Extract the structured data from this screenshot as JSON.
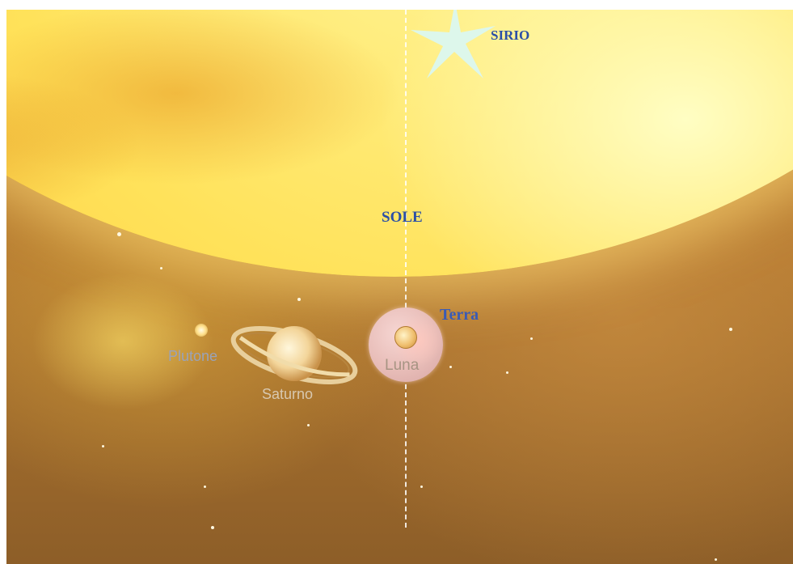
{
  "labels": {
    "sirio": "SIRIO",
    "sole": "SOLE",
    "terra": "Terra",
    "luna": "Luna",
    "saturno": "Saturno",
    "plutone": "Plutone"
  },
  "colors": {
    "primary_label": "#2b4fa6",
    "terra_label": "#3a5bb5",
    "plutone_label": "#9aa3b9",
    "saturno_label": "#d8c8b0",
    "luna_label": "#a79483",
    "sirio_star": "#d9f7f5"
  }
}
